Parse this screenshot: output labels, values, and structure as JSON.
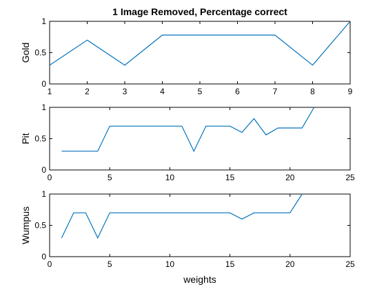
{
  "chart_data": [
    {
      "type": "line",
      "title": "1 Image Removed, Percentage correct",
      "xlabel": "",
      "ylabel": "Gold",
      "xlim": [
        1,
        9
      ],
      "ylim": [
        0,
        1
      ],
      "xticks": [
        1,
        2,
        3,
        4,
        5,
        6,
        7,
        8,
        9
      ],
      "yticks": [
        0,
        0.5,
        1
      ],
      "grid": false,
      "color": "#0072bd",
      "x": [
        1,
        2,
        3,
        4,
        5,
        6,
        7,
        8,
        9
      ],
      "y": [
        0.3,
        0.7,
        0.3,
        0.78,
        0.78,
        0.78,
        0.78,
        0.3,
        1.0
      ]
    },
    {
      "type": "line",
      "title": "",
      "xlabel": "",
      "ylabel": "Pit",
      "xlim": [
        0,
        25
      ],
      "ylim": [
        0,
        1
      ],
      "xticks": [
        0,
        5,
        10,
        15,
        20,
        25
      ],
      "yticks": [
        0,
        0.5,
        1
      ],
      "grid": false,
      "color": "#0072bd",
      "x": [
        1,
        2,
        3,
        4,
        5,
        6,
        7,
        8,
        9,
        10,
        11,
        12,
        13,
        14,
        15,
        16,
        17,
        18,
        19,
        20,
        21,
        22
      ],
      "y": [
        0.3,
        0.3,
        0.3,
        0.3,
        0.7,
        0.7,
        0.7,
        0.7,
        0.7,
        0.7,
        0.7,
        0.3,
        0.7,
        0.7,
        0.7,
        0.6,
        0.82,
        0.56,
        0.67,
        0.67,
        0.67,
        1.0
      ]
    },
    {
      "type": "line",
      "title": "",
      "xlabel": "weights",
      "ylabel": "Wumpus",
      "xlim": [
        0,
        25
      ],
      "ylim": [
        0,
        1
      ],
      "xticks": [
        0,
        5,
        10,
        15,
        20,
        25
      ],
      "yticks": [
        0,
        0.5,
        1
      ],
      "grid": false,
      "color": "#0072bd",
      "x": [
        1,
        2,
        3,
        4,
        5,
        6,
        7,
        8,
        9,
        10,
        11,
        12,
        13,
        14,
        15,
        16,
        17,
        18,
        19,
        20,
        21
      ],
      "y": [
        0.3,
        0.7,
        0.7,
        0.3,
        0.7,
        0.7,
        0.7,
        0.7,
        0.7,
        0.7,
        0.7,
        0.7,
        0.7,
        0.7,
        0.7,
        0.6,
        0.7,
        0.7,
        0.7,
        0.7,
        1.0
      ]
    }
  ]
}
